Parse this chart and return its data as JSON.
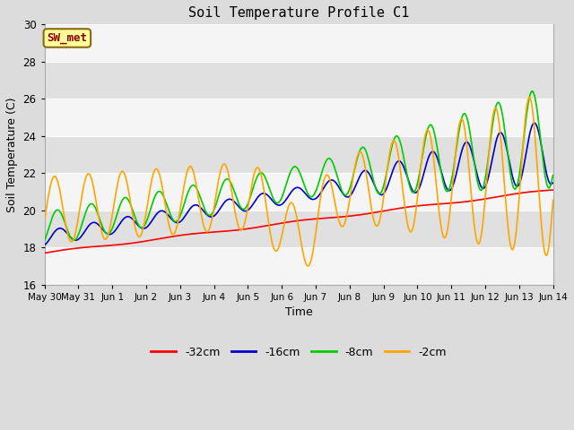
{
  "title": "Soil Temperature Profile C1",
  "xlabel": "Time",
  "ylabel": "Soil Temperature (C)",
  "ylim": [
    16,
    30
  ],
  "yticks": [
    16,
    18,
    20,
    22,
    24,
    26,
    28,
    30
  ],
  "annotation_text": "SW_met",
  "annotation_color": "#8B0000",
  "annotation_bg": "#FFFF99",
  "annotation_border": "#8B6914",
  "legend_labels": [
    "-32cm",
    "-16cm",
    "-8cm",
    "-2cm"
  ],
  "line_colors": [
    "#FF0000",
    "#0000CC",
    "#00CC00",
    "#FFA500"
  ],
  "line_width": 1.2,
  "bg_color": "#DCDCDC",
  "plot_bg": "#F5F5F5",
  "band_color": "#E0E0E0",
  "tick_labels": [
    "May 30",
    "May 31",
    "Jun 1",
    "Jun 2",
    "Jun 3",
    "Jun 4",
    "Jun 5",
    "Jun 6",
    "Jun 7",
    "Jun 8",
    "Jun 9",
    "Jun 10",
    "Jun 11",
    "Jun 12",
    "Jun 13",
    "Jun 14"
  ],
  "days": 15
}
